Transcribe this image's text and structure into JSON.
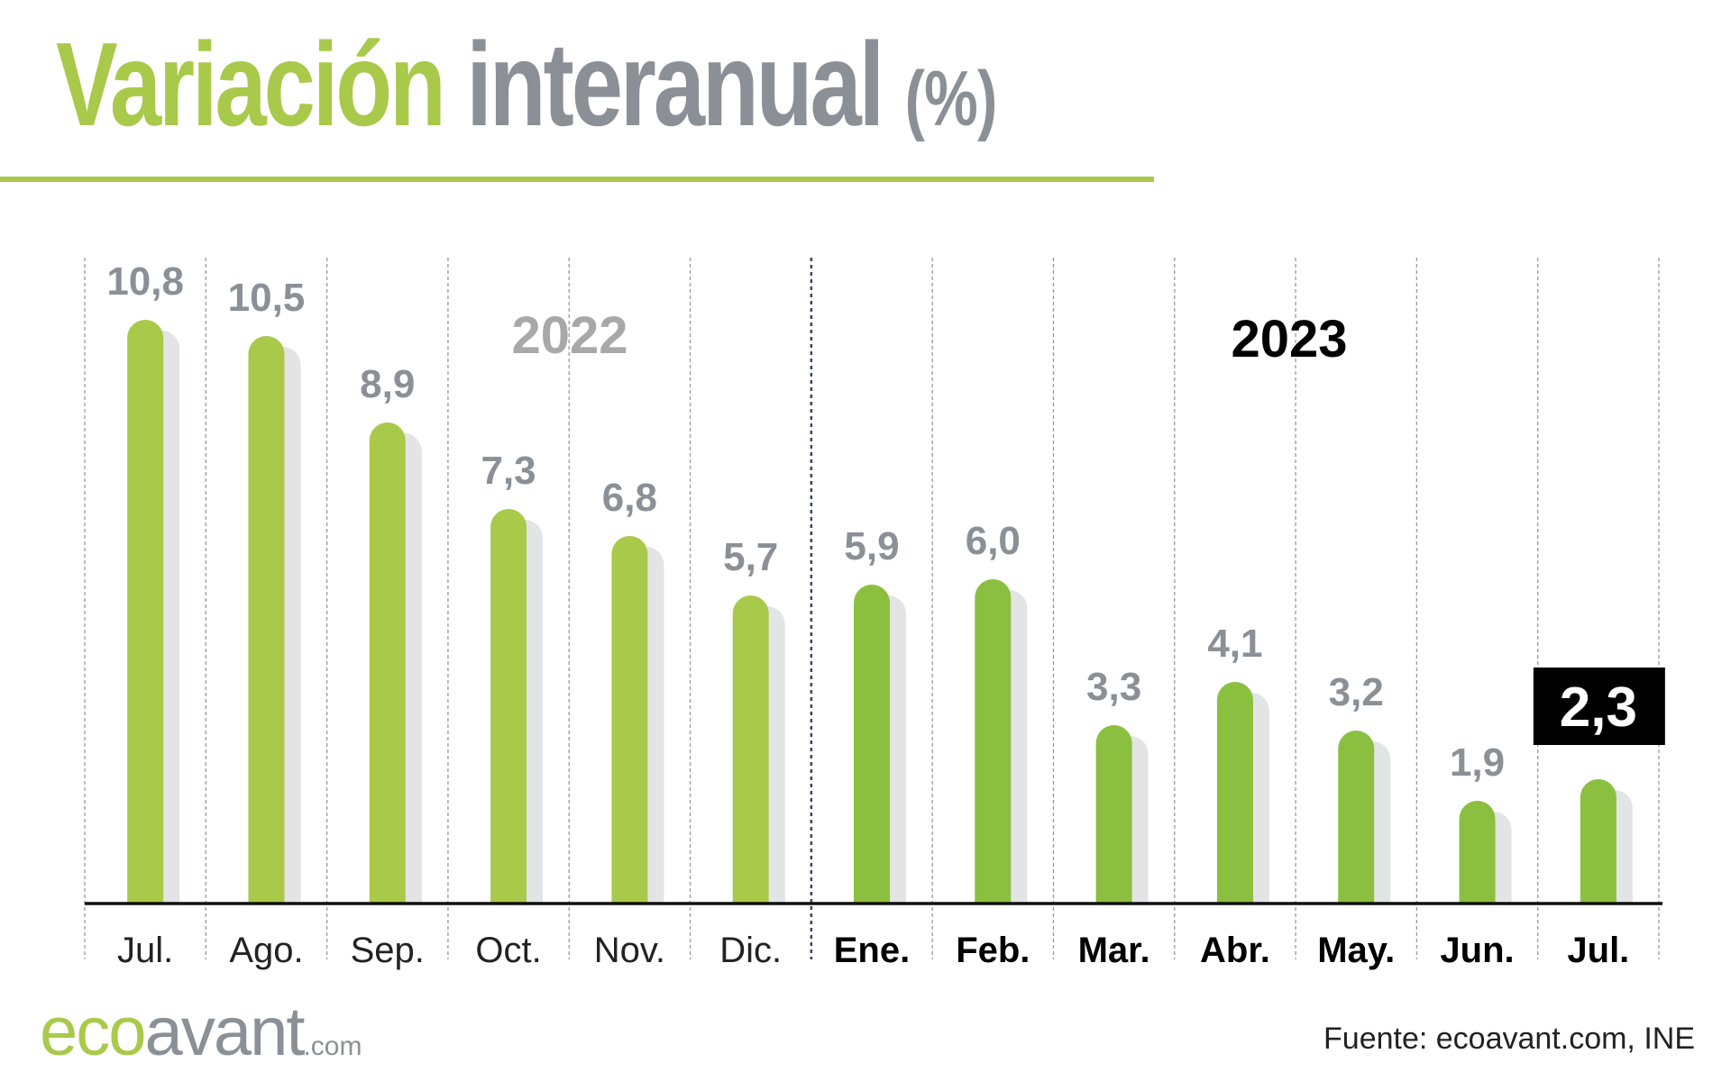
{
  "header": {
    "title_part1": "Variación",
    "title_part2": "interanual",
    "title_part3": "(%)"
  },
  "footer": {
    "logo_eco": "eco",
    "logo_avant": "avant",
    "logo_com": ".com",
    "source": "Fuente: ecoavant.com, INE"
  },
  "colors": {
    "green_light": "#a9c94a",
    "green_dark": "#8bbf3f",
    "gray": "#8a9096",
    "shadow": "#e3e4e6",
    "highlight_box": "#000000"
  },
  "chart_data": {
    "type": "bar",
    "categories": [
      "Jul.",
      "Ago.",
      "Sep.",
      "Oct.",
      "Nov.",
      "Dic.",
      "Ene.",
      "Feb.",
      "Mar.",
      "Abr.",
      "May.",
      "Jun.",
      "Jul."
    ],
    "values": [
      10.8,
      10.5,
      8.9,
      7.3,
      6.8,
      5.7,
      5.9,
      6.0,
      3.3,
      4.1,
      3.2,
      1.9,
      2.3
    ],
    "value_labels": [
      "10,8",
      "10,5",
      "8,9",
      "7,3",
      "6,8",
      "5,7",
      "5,9",
      "6,0",
      "3,3",
      "4,1",
      "3,2",
      "1,9",
      "2,3"
    ],
    "groups": [
      {
        "label": "2022",
        "start": 0,
        "end": 5
      },
      {
        "label": "2023",
        "start": 6,
        "end": 12
      }
    ],
    "highlight_index": 12,
    "title": "Variación interanual (%)",
    "xlabel": "",
    "ylabel": "",
    "ylim": [
      0,
      11.5
    ],
    "grid": "vertical dashed",
    "legend": "none"
  }
}
